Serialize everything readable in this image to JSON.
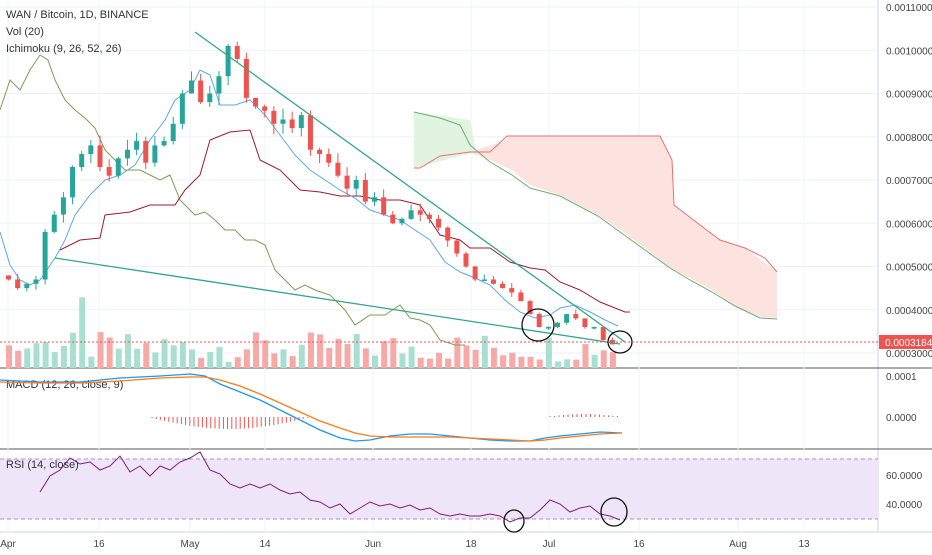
{
  "header": {
    "title": "WAN / Bitcoin, 1D, BINANCE",
    "vol_label": "Vol (20)",
    "ichimoku_label": "Ichimoku (9, 26, 52, 26)"
  },
  "price_axis": {
    "ticks": [
      "0.0011000",
      "0.0010000",
      "0.0009000",
      "0.0008000",
      "0.0007000",
      "0.0006000",
      "0.0005000",
      "0.0004000",
      "0.0003000"
    ],
    "last_price": "0.0003184",
    "ylim": [
      0.0003,
      0.0011
    ]
  },
  "time_axis": {
    "ticks": [
      "Apr",
      "16",
      "May",
      "14",
      "Jun",
      "18",
      "Jul",
      "16",
      "Aug",
      "13"
    ]
  },
  "macd": {
    "label": "MACD (12, 26, close, 9)",
    "ticks": [
      "0.0001",
      "0.0000"
    ]
  },
  "rsi": {
    "label": "RSI (14, close)",
    "ticks": [
      "60.0000",
      "40.0000"
    ]
  },
  "colors": {
    "up": "#26a69a",
    "down": "#ef5350",
    "vol_up": "#a8dfd0",
    "vol_down": "#f7a9a7",
    "tenkan": "#5fa8e6",
    "kijun": "#9c1c30",
    "chikou": "#6b8e3b",
    "cloud_bull": "#d9f0d9",
    "cloud_bear": "#fde0dd",
    "trendline": "#33a68b",
    "macd_line": "#2196f3",
    "signal_line": "#ff7b1c",
    "rsi_line": "#7b1f7a",
    "rsi_band": "#efe5f9",
    "price_tag": "#ef5350"
  },
  "chart_data": {
    "type": "candlestick",
    "symbol": "WAN / Bitcoin",
    "interval": "1D",
    "exchange": "BINANCE",
    "close_series": [
      0.00047,
      0.00045,
      0.00046,
      0.00047,
      0.00058,
      0.00062,
      0.00066,
      0.00073,
      0.00076,
      0.00078,
      0.00073,
      0.00071,
      0.00075,
      0.00077,
      0.00079,
      0.00074,
      0.00078,
      0.00079,
      0.00083,
      0.0009,
      0.00093,
      0.00088,
      0.0009,
      0.00094,
      0.00101,
      0.00098,
      0.00089,
      0.00087,
      0.00086,
      0.00083,
      0.00084,
      0.00082,
      0.00085,
      0.00077,
      0.00076,
      0.00074,
      0.00071,
      0.00068,
      0.0007,
      0.00065,
      0.00066,
      0.00062,
      0.0006,
      0.00061,
      0.00063,
      0.00062,
      0.00061,
      0.00059,
      0.00056,
      0.00053,
      0.0005,
      0.00047,
      0.00047,
      0.00046,
      0.00045,
      0.00044,
      0.00042,
      0.00039,
      0.00036,
      0.00036,
      0.00037,
      0.00039,
      0.00038,
      0.00036,
      0.00036,
      0.00033,
      0.00032
    ],
    "last_price": 0.0003184,
    "ylim": [
      0.0003,
      0.0011
    ]
  }
}
